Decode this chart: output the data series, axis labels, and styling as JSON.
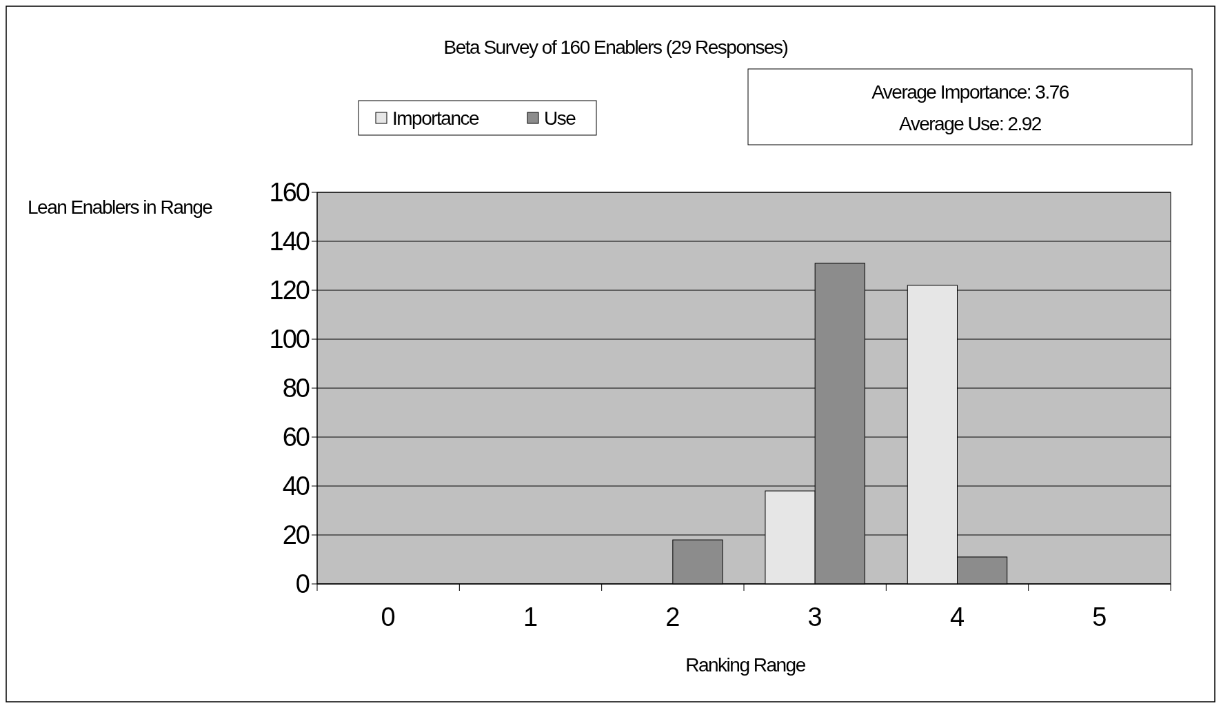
{
  "chart_data": {
    "type": "bar",
    "title": "Beta Survey of 160 Enablers (29 Responses)",
    "xlabel": "Ranking Range",
    "ylabel": "Lean Enablers in Range",
    "categories": [
      "0",
      "1",
      "2",
      "3",
      "4",
      "5"
    ],
    "series": [
      {
        "name": "Importance",
        "color": "#e6e6e6",
        "values": [
          0,
          0,
          0,
          38,
          122,
          0
        ]
      },
      {
        "name": "Use",
        "color": "#8c8c8c",
        "values": [
          0,
          0,
          18,
          131,
          11,
          0
        ]
      }
    ],
    "ylim": [
      0,
      160
    ],
    "yticks": [
      0,
      20,
      40,
      60,
      80,
      100,
      120,
      140,
      160
    ],
    "grid": "y",
    "legend": "top",
    "annotations": [
      "Average Importance: 3.76",
      "Average Use: 2.92"
    ]
  }
}
